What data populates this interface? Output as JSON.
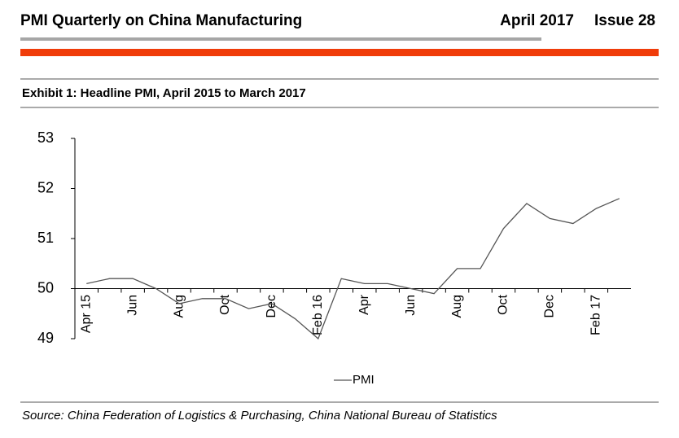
{
  "header": {
    "title": "PMI Quarterly on China Manufacturing",
    "date": "April 2017",
    "issue": "Issue 28"
  },
  "exhibit_title": "Exhibit 1: Headline PMI, April 2015 to March 2017",
  "chart_data": {
    "type": "line",
    "categories": [
      "Apr 15",
      null,
      "Jun",
      null,
      "Aug",
      null,
      "Oct",
      null,
      "Dec",
      null,
      "Feb 16",
      null,
      "Apr",
      null,
      "Jun",
      null,
      "Aug",
      null,
      "Oct",
      null,
      "Dec",
      null,
      "Feb 17",
      null
    ],
    "series": [
      {
        "name": "PMI",
        "color": "#555555",
        "values": [
          50.1,
          50.2,
          50.2,
          50.0,
          49.7,
          49.8,
          49.8,
          49.6,
          49.7,
          49.4,
          49.0,
          50.2,
          50.1,
          50.1,
          50.0,
          49.9,
          50.4,
          50.4,
          51.2,
          51.7,
          51.4,
          51.3,
          51.6,
          51.8
        ]
      }
    ],
    "ylim": [
      49,
      53
    ],
    "yticks": [
      49,
      50,
      51,
      52,
      53
    ],
    "x_axis_at": 50,
    "legend": "bottom"
  },
  "source": "Source: China Federation of Logistics & Purchasing, China National Bureau of Statistics"
}
